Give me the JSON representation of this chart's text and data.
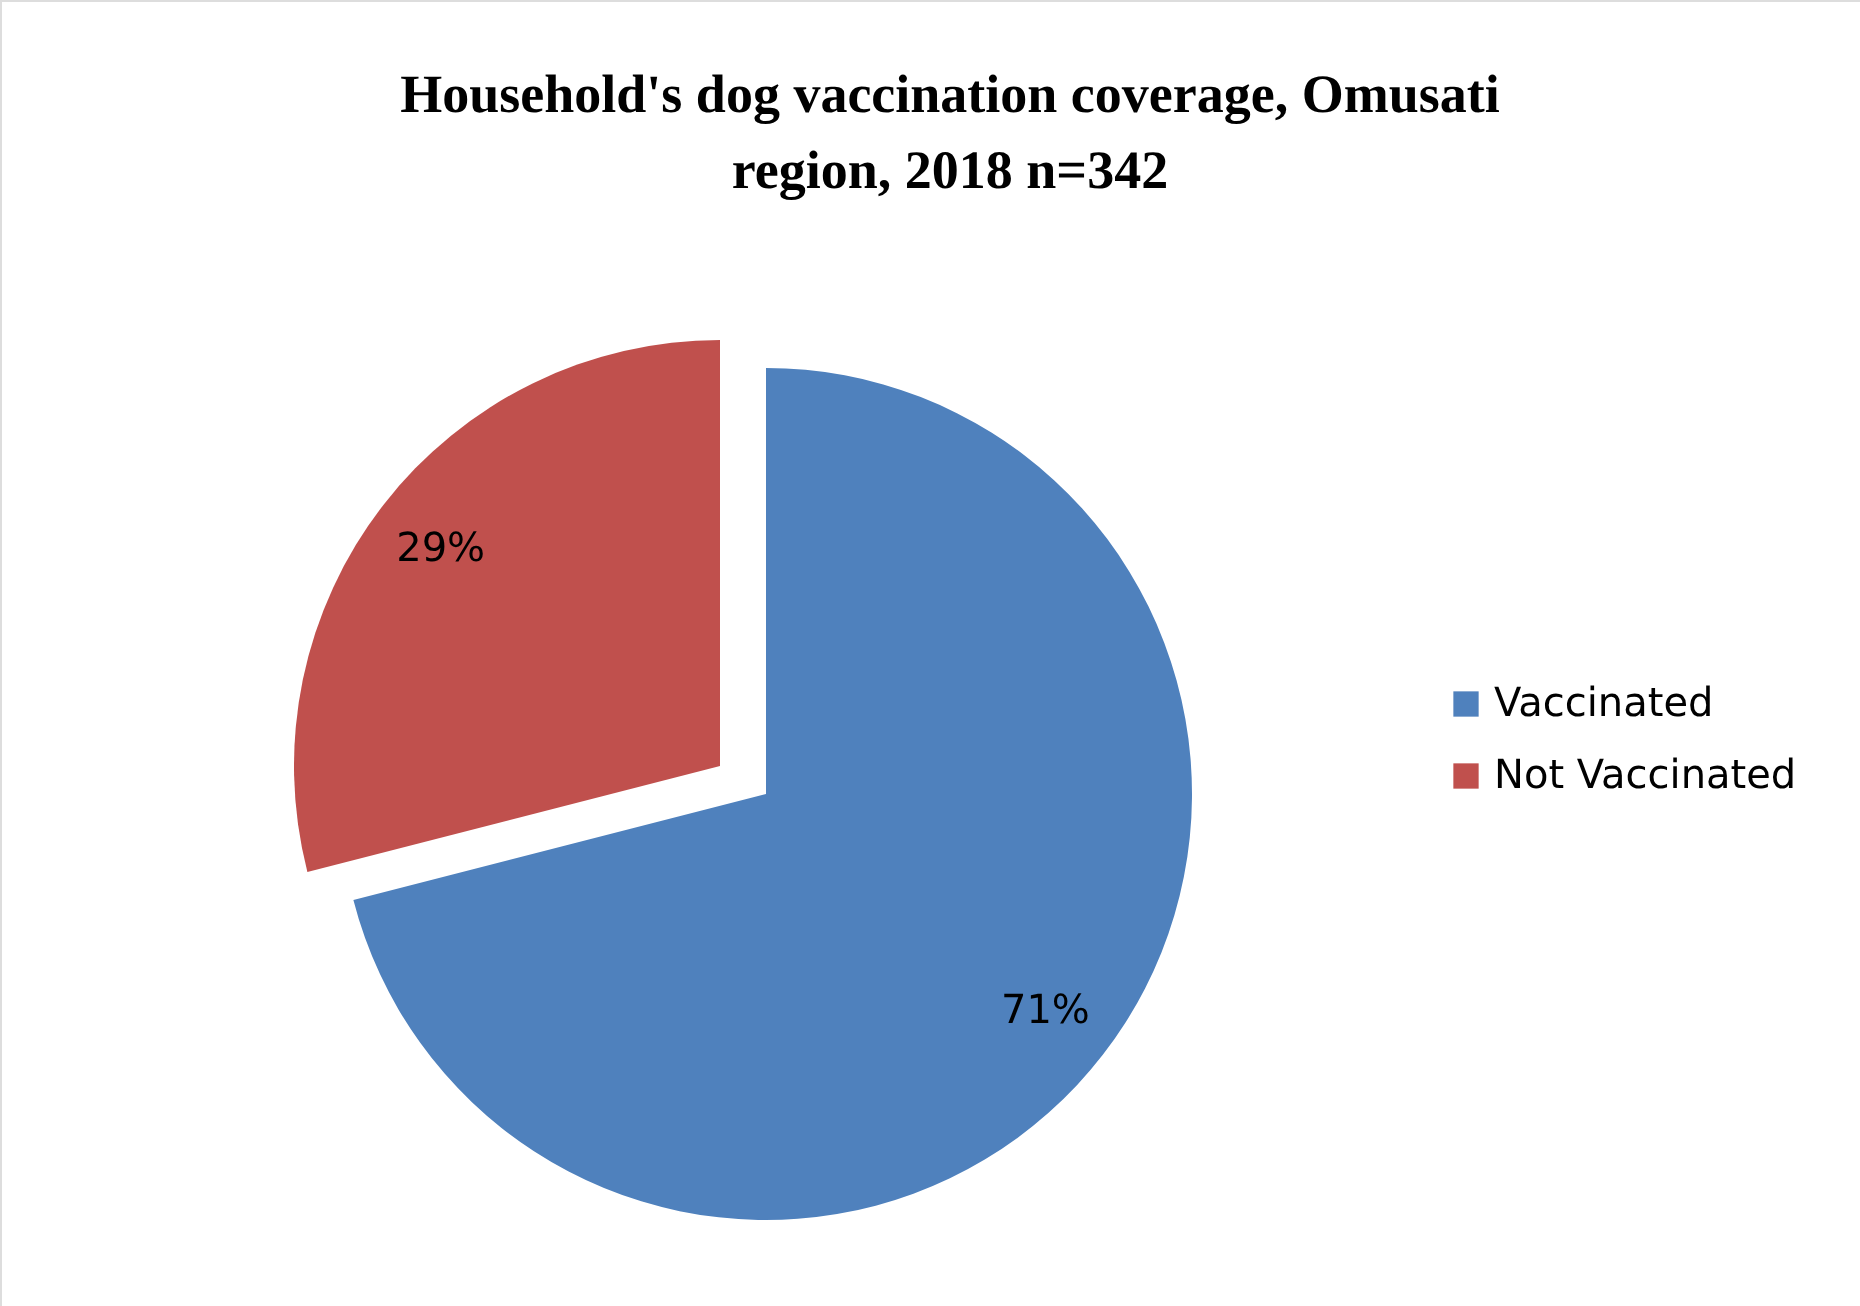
{
  "chart_data": {
    "type": "pie",
    "title": "Household's  dog vaccination coverage, Omusati region, 2018 n=342",
    "categories": [
      "Vaccinated",
      "Not Vaccinated"
    ],
    "values": [
      71,
      29
    ],
    "colors": [
      "#4f81bd",
      "#c0504d"
    ],
    "value_labels": [
      "71%",
      "29%"
    ],
    "legend": "right"
  }
}
